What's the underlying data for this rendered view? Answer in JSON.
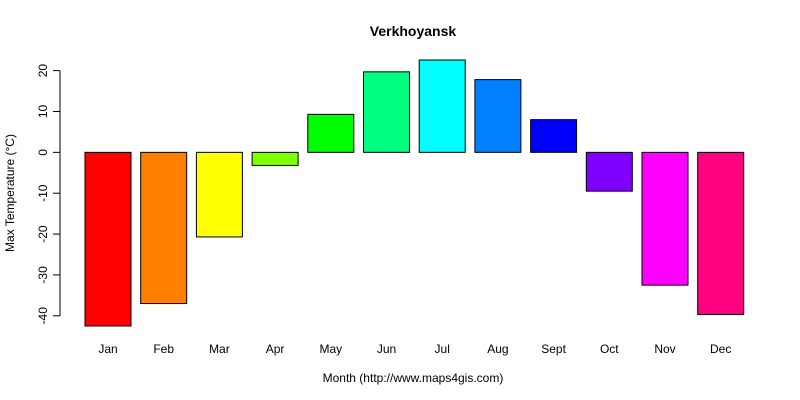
{
  "chart_data": {
    "type": "bar",
    "title": "Verkhoyansk",
    "xlabel": "Month (http://www.maps4gis.com)",
    "ylabel": "Max Temperature (°C)",
    "categories": [
      "Jan",
      "Feb",
      "Mar",
      "Apr",
      "May",
      "Jun",
      "Jul",
      "Aug",
      "Sept",
      "Oct",
      "Nov",
      "Dec"
    ],
    "values": [
      -42.5,
      -37,
      -20.7,
      -3.2,
      9.3,
      19.7,
      22.6,
      17.8,
      8.0,
      -9.5,
      -32.5,
      -39.7
    ],
    "colors": [
      "#FF0000",
      "#FF8000",
      "#FFFF00",
      "#80FF00",
      "#00FF00",
      "#00FF80",
      "#00FFFF",
      "#0080FF",
      "#0000FF",
      "#8000FF",
      "#FF00FF",
      "#FF0080"
    ],
    "yticks": [
      20,
      10,
      0,
      -10,
      -20,
      -30,
      -40
    ],
    "ylim": [
      -42.5,
      22.6
    ],
    "grid": false
  }
}
